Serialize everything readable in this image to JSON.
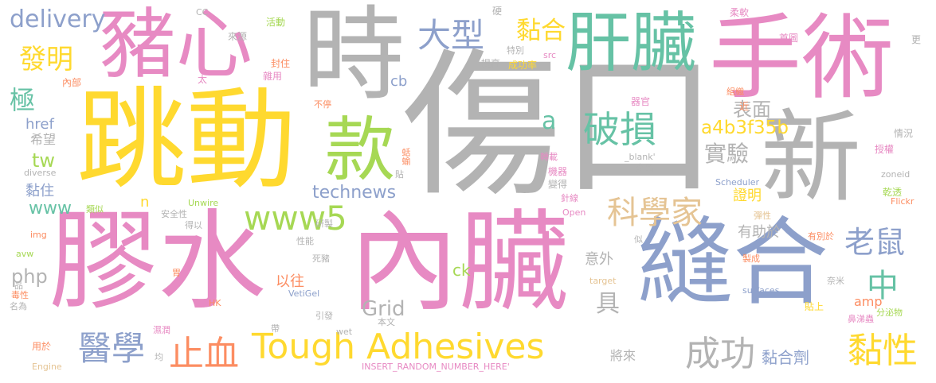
{
  "palette": {
    "pink": "#e78ac3",
    "yellow": "#ffd92f",
    "gray": "#b3b3b3",
    "blue": "#8da0cb",
    "green": "#66c2a5",
    "lime": "#a6d854",
    "tan": "#e5c494",
    "orange": "#fc8d62"
  },
  "words": [
    "傷口",
    "跳動",
    "膠水",
    "內臟",
    "縫合",
    "手術",
    "豬心",
    "時",
    "新",
    "肝臟",
    "款",
    "破損",
    "大型",
    "黏合",
    "www5",
    "科學家",
    "Tough Adhesives",
    "醫學",
    "止血",
    "成功",
    "黏性",
    "老鼠",
    "中",
    "實驗",
    "表面",
    "a4b3f35b",
    "發明",
    "delivery",
    "technews",
    "tw",
    "a",
    "Grid",
    "php",
    "具",
    "極",
    "www",
    "黏住",
    "黏合劑",
    "證明",
    "有助於",
    "意外",
    "href",
    "希望",
    "cb",
    "ck",
    "以往",
    "amp",
    "將來",
    "n",
    "CC",
    "來源",
    "活動",
    "硬",
    "柔軟",
    "首圖",
    "更",
    "封住",
    "src",
    "提高",
    "成功率",
    "內部",
    "雜用",
    "太",
    "不停",
    "器官",
    "組織",
    "近",
    "情況",
    "授權",
    "轉載",
    "_blank'",
    "產品",
    "機器",
    "變得",
    "蛞蝓",
    "貼",
    "zoneid",
    "乾透",
    "diverse",
    "Scheduler",
    "Flickr",
    "針線",
    "Unwire",
    "安全性",
    "得以",
    "類似",
    "彈性",
    "Open",
    "研製",
    "img",
    "性能",
    "似",
    "有別於",
    "avw",
    "製成",
    "死豬",
    "胃",
    "target",
    "奈米",
    "品",
    "毒性",
    "VetiGel",
    "surfaces",
    "HK",
    "貼上",
    "引發",
    "分泌物",
    "鼻涕蟲",
    "名為",
    "本文",
    "濕潤",
    "帶",
    "wet",
    "用於",
    "均",
    "Engine",
    "INSERT_RANDOM_NUMBER_HERE'",
    "特別"
  ]
}
